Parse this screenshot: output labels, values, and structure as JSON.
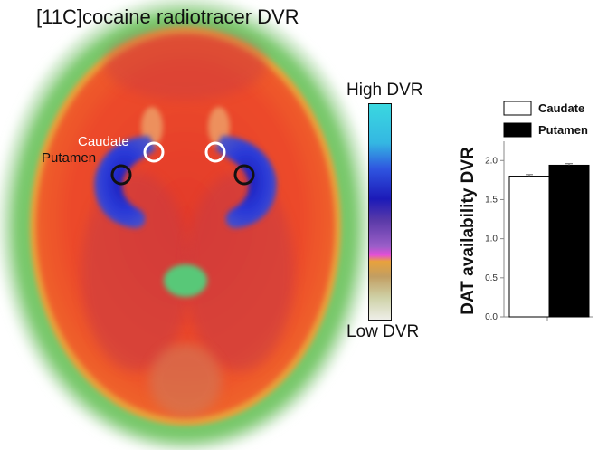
{
  "brain": {
    "title": "[11C]cocaine radiotracer DVR",
    "roi_labels": {
      "caudate": "Caudate",
      "putamen": "Putamen"
    }
  },
  "colorbar": {
    "high_label": "High DVR",
    "low_label": "Low DVR"
  },
  "chart_data": {
    "type": "bar",
    "categories": [
      "Caudate",
      "Putamen"
    ],
    "values": [
      1.8,
      1.94
    ],
    "errors": [
      0.02,
      0.02
    ],
    "colors": [
      "#ffffff",
      "#000000"
    ],
    "legend": [
      "Caudate",
      "Putamen"
    ],
    "legend_position": "top",
    "ylabel": "DAT availability DVR",
    "xlabel": "",
    "ylim": [
      0,
      2.2
    ],
    "yticks": [
      "0.0",
      "0.5",
      "1.0",
      "1.5",
      "2.0"
    ]
  }
}
